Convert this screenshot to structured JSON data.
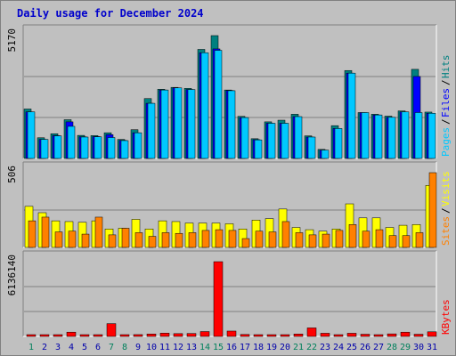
{
  "title": "Daily usage for December 2024",
  "colors": {
    "hits": "#008080",
    "files": "#0000ff",
    "pages": "#00c8ff",
    "visits": "#ffff00",
    "sites": "#ff8000",
    "kbytes": "#ff0000",
    "weekend": "#00805c",
    "weekday": "#0000aa"
  },
  "chart_data": [
    {
      "type": "bar",
      "name": "hits-files-pages",
      "ymax_label": "5170",
      "ylim": [
        0,
        5170
      ],
      "legend": [
        "Pages",
        "/",
        "Files",
        "/",
        "Hits"
      ],
      "categories": [
        "1",
        "2",
        "3",
        "4",
        "5",
        "6",
        "7",
        "8",
        "9",
        "10",
        "11",
        "12",
        "13",
        "14",
        "15",
        "16",
        "17",
        "18",
        "19",
        "20",
        "21",
        "22",
        "23",
        "24",
        "25",
        "26",
        "27",
        "28",
        "29",
        "30",
        "31"
      ],
      "series": [
        {
          "name": "Hits",
          "values": [
            2080,
            870,
            1040,
            1630,
            970,
            960,
            1080,
            800,
            1210,
            2520,
            2910,
            2990,
            2950,
            4590,
            5170,
            2880,
            1770,
            830,
            1540,
            1610,
            1860,
            950,
            380,
            1380,
            3700,
            1930,
            1860,
            1780,
            2000,
            3750,
            1950
          ]
        },
        {
          "name": "Files",
          "values": [
            1960,
            800,
            960,
            1540,
            910,
            920,
            1000,
            760,
            1080,
            2320,
            2880,
            2970,
            2900,
            4450,
            4610,
            2860,
            1720,
            790,
            1480,
            1480,
            1760,
            900,
            350,
            1260,
            3590,
            1930,
            1830,
            1730,
            1960,
            3450,
            1900
          ]
        },
        {
          "name": "Pages",
          "values": [
            1960,
            800,
            950,
            1350,
            900,
            910,
            880,
            750,
            1080,
            2320,
            2880,
            2970,
            2900,
            4450,
            4550,
            2850,
            1720,
            780,
            1480,
            1480,
            1760,
            900,
            350,
            1260,
            3590,
            1930,
            1830,
            1730,
            1960,
            1930,
            1900
          ]
        }
      ]
    },
    {
      "type": "bar",
      "name": "visits-sites",
      "ymax_label": "506",
      "ylim": [
        0,
        506
      ],
      "legend": [
        "Sites",
        "/",
        "Visits"
      ],
      "categories": [
        "1",
        "2",
        "3",
        "4",
        "5",
        "6",
        "7",
        "8",
        "9",
        "10",
        "11",
        "12",
        "13",
        "14",
        "15",
        "16",
        "17",
        "18",
        "19",
        "20",
        "21",
        "22",
        "23",
        "24",
        "25",
        "26",
        "27",
        "28",
        "29",
        "30",
        "31"
      ],
      "series": [
        {
          "name": "Visits",
          "values": [
            278,
            235,
            180,
            175,
            170,
            180,
            125,
            130,
            190,
            125,
            180,
            175,
            165,
            165,
            165,
            160,
            125,
            185,
            195,
            260,
            135,
            120,
            110,
            125,
            295,
            200,
            200,
            135,
            150,
            155,
            420
          ]
        },
        {
          "name": "Sites",
          "values": [
            180,
            205,
            105,
            110,
            90,
            205,
            85,
            130,
            100,
            75,
            100,
            95,
            100,
            115,
            120,
            115,
            60,
            110,
            105,
            175,
            100,
            85,
            90,
            115,
            155,
            110,
            120,
            80,
            80,
            100,
            506
          ]
        }
      ]
    },
    {
      "type": "bar",
      "name": "kbytes",
      "ymax_label": "6136140",
      "ylim": [
        0,
        6136140
      ],
      "legend": [
        "KBytes"
      ],
      "categories": [
        "1",
        "2",
        "3",
        "4",
        "5",
        "6",
        "7",
        "8",
        "9",
        "10",
        "11",
        "12",
        "13",
        "14",
        "15",
        "16",
        "17",
        "18",
        "19",
        "20",
        "21",
        "22",
        "23",
        "24",
        "25",
        "26",
        "27",
        "28",
        "29",
        "30",
        "31"
      ],
      "series": [
        {
          "name": "KBytes",
          "values": [
            70000,
            60000,
            80000,
            350000,
            80000,
            70000,
            1050000,
            90000,
            150000,
            200000,
            270000,
            230000,
            240000,
            400000,
            6136140,
            440000,
            160000,
            120000,
            120000,
            140000,
            200000,
            700000,
            260000,
            110000,
            260000,
            180000,
            120000,
            210000,
            350000,
            180000,
            380000
          ]
        }
      ],
      "weekend_days": [
        1,
        7,
        8,
        14,
        15,
        21,
        22,
        28,
        29
      ]
    }
  ]
}
